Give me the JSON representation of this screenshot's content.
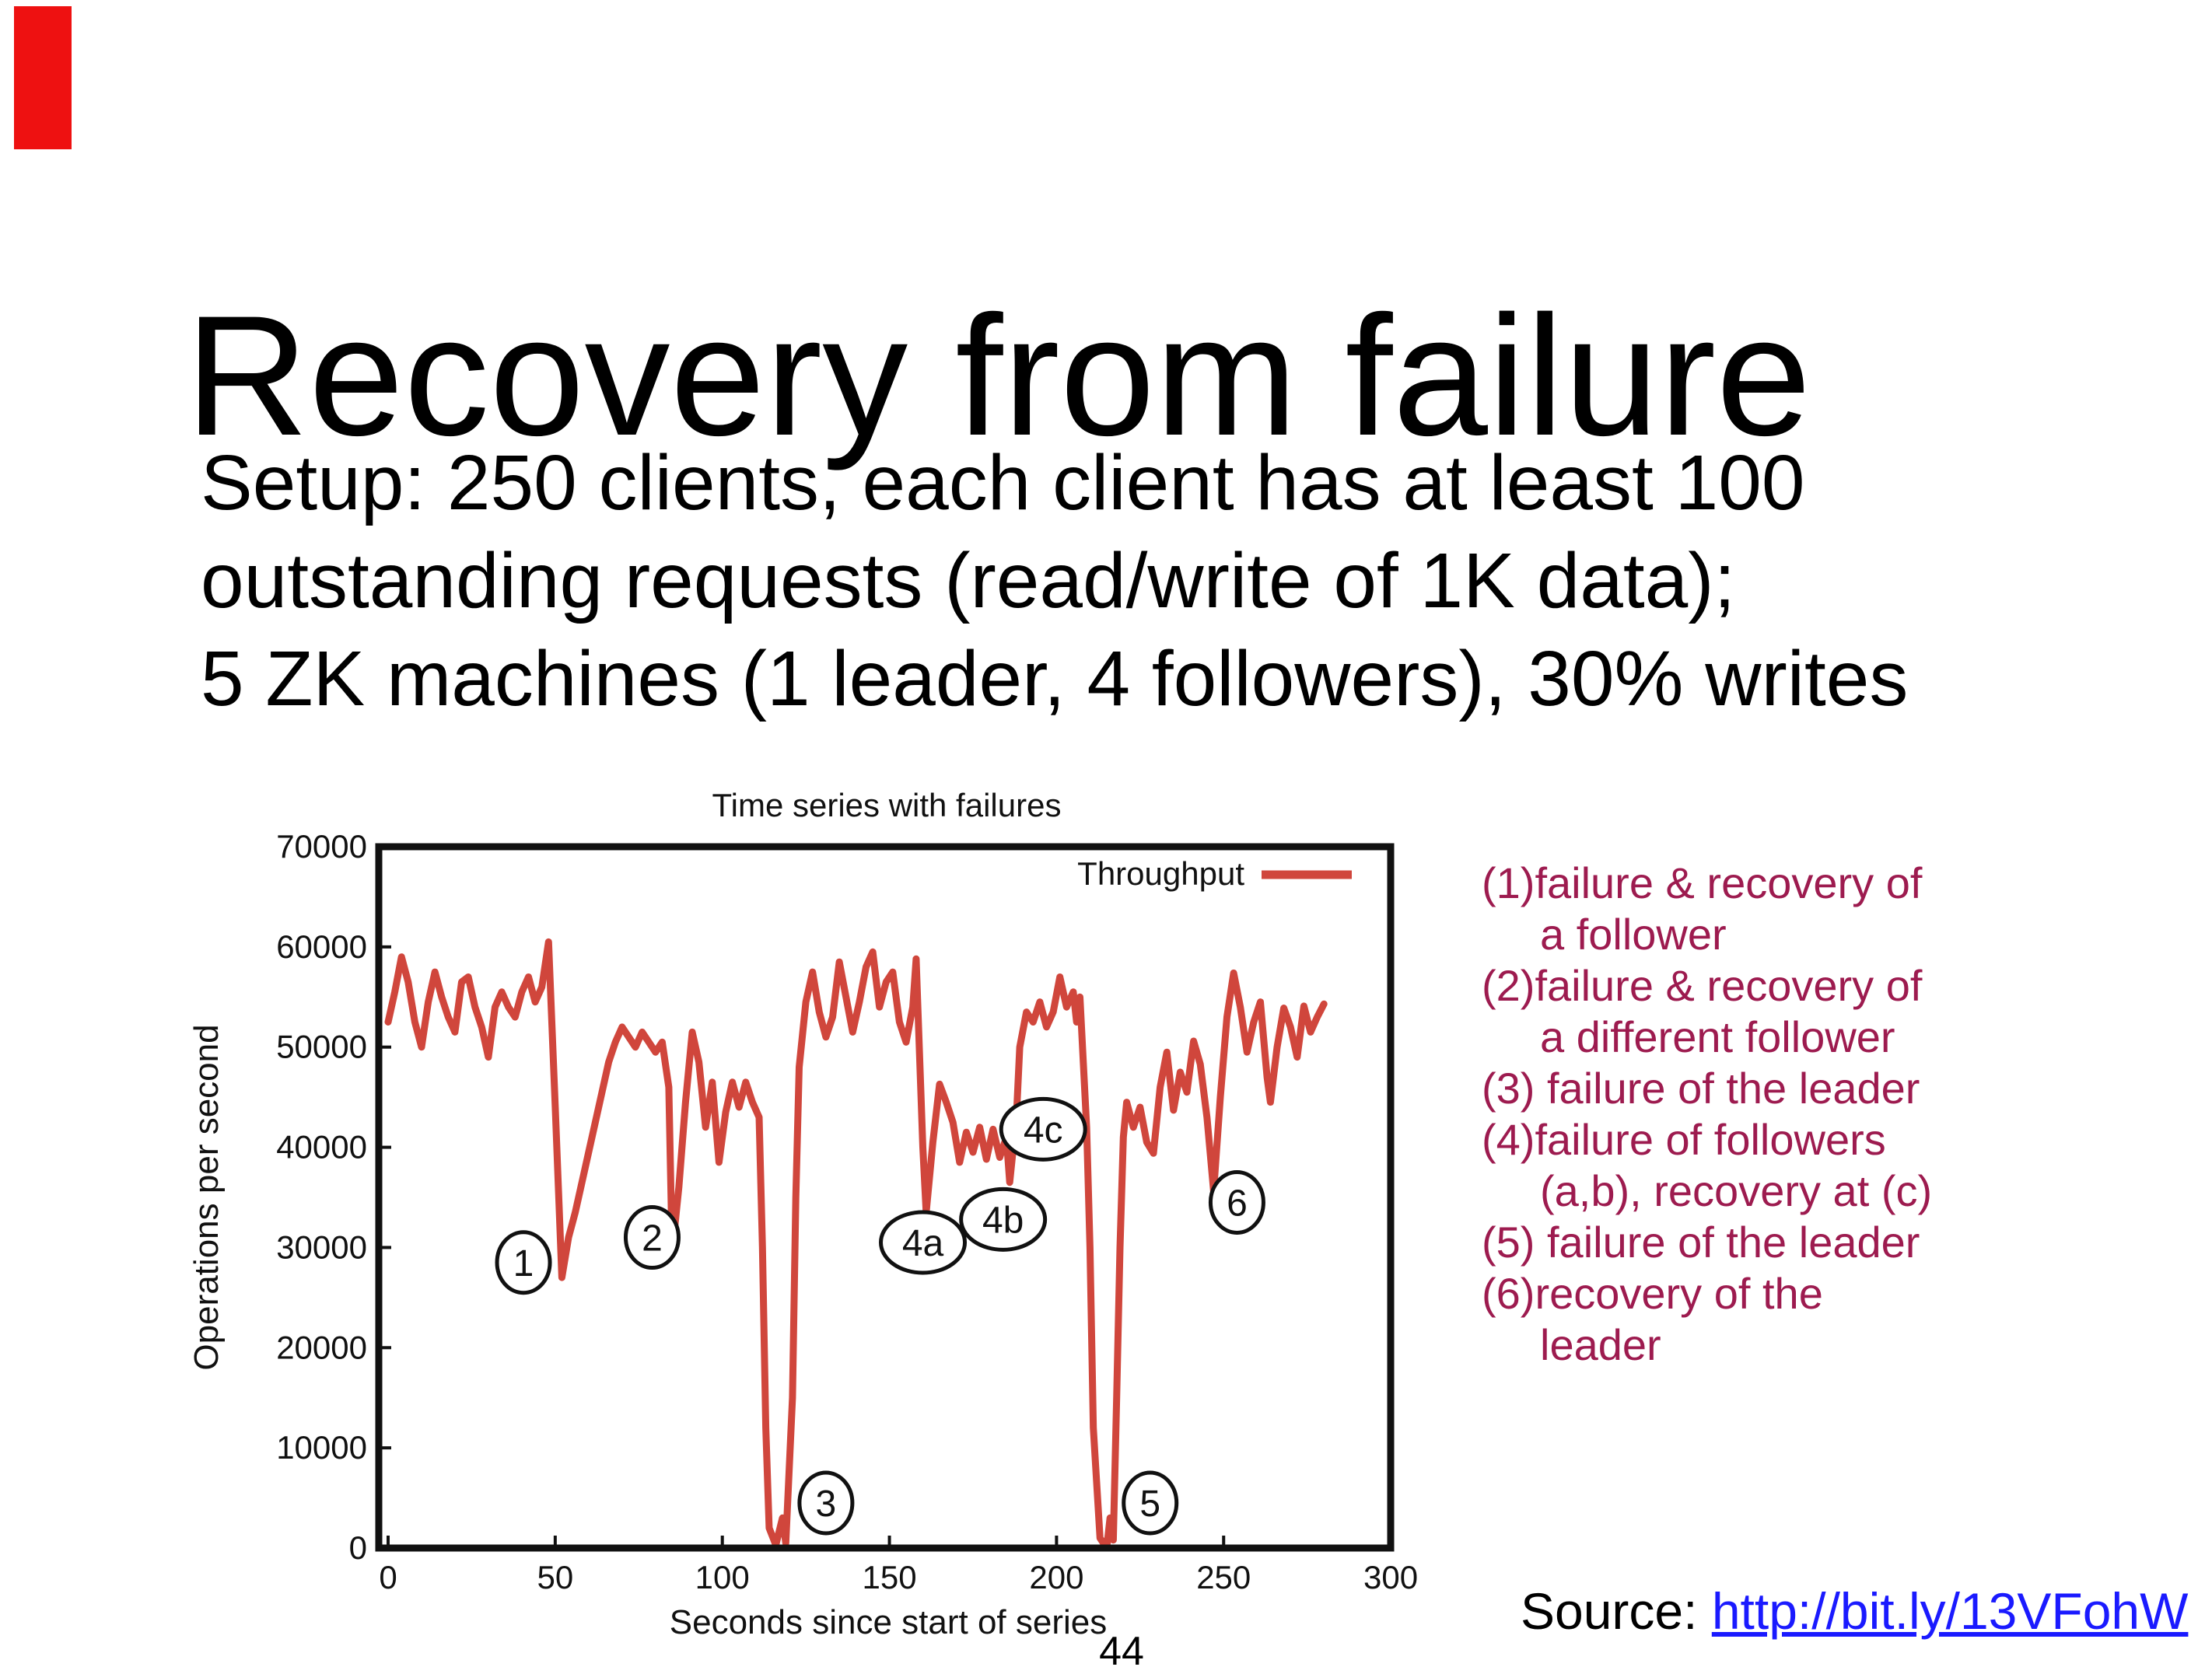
{
  "title": "Recovery from failure",
  "setup": {
    "text": "Setup: 250 clients, each client has at least 100\noutstanding requests (read/write of 1K data);\n5 ZK machines (1 leader, 4 followers), 30% writes"
  },
  "page_number": "44",
  "source": {
    "label": "Source:",
    "url": "http://bit.ly/13VFohW",
    "link_color": "#1a1aff"
  },
  "colors": {
    "accent_red_bar": "#ee1111",
    "line_red": "#d0463c",
    "event_text_maroon": "#9d1b4f",
    "chart_border": "#111111"
  },
  "events": {
    "lines": [
      {
        "text": "(1)failure & recovery of",
        "indent": false
      },
      {
        "text": "a follower",
        "indent": true
      },
      {
        "text": "(2)failure & recovery of",
        "indent": false
      },
      {
        "text": "a different follower",
        "indent": true
      },
      {
        "text": "(3) failure of the leader",
        "indent": false
      },
      {
        "text": "(4)failure of followers",
        "indent": false
      },
      {
        "text": "(a,b), recovery at (c)",
        "indent": true
      },
      {
        "text": "(5) failure of the leader",
        "indent": false
      },
      {
        "text": "(6)recovery of the",
        "indent": false
      },
      {
        "text": "leader",
        "indent": true
      }
    ]
  },
  "chart_data": {
    "type": "line",
    "title": "Time series with failures",
    "xlabel": "Seconds since start of series",
    "ylabel": "Operations per second",
    "xlim": [
      0,
      300
    ],
    "ylim": [
      0,
      70000
    ],
    "xticks": [
      0,
      50,
      100,
      150,
      200,
      250,
      300
    ],
    "yticks": [
      0,
      10000,
      20000,
      30000,
      40000,
      50000,
      60000,
      70000
    ],
    "grid": false,
    "legend": {
      "label": "Throughput",
      "position": "top-right"
    },
    "series": [
      {
        "name": "Throughput",
        "color": "#d0463c",
        "points": [
          [
            0,
            52500
          ],
          [
            2,
            55500
          ],
          [
            4,
            59000
          ],
          [
            6,
            56500
          ],
          [
            8,
            52500
          ],
          [
            10,
            50000
          ],
          [
            12,
            54500
          ],
          [
            14,
            57500
          ],
          [
            16,
            55000
          ],
          [
            18,
            53000
          ],
          [
            20,
            51500
          ],
          [
            22,
            56500
          ],
          [
            24,
            57000
          ],
          [
            26,
            54000
          ],
          [
            28,
            52000
          ],
          [
            30,
            49000
          ],
          [
            32,
            54000
          ],
          [
            34,
            55500
          ],
          [
            36,
            54000
          ],
          [
            38,
            53000
          ],
          [
            40,
            55500
          ],
          [
            42,
            57000
          ],
          [
            44,
            54500
          ],
          [
            46,
            56000
          ],
          [
            48,
            60500
          ],
          [
            50,
            44000
          ],
          [
            52,
            27000
          ],
          [
            54,
            31000
          ],
          [
            56,
            33500
          ],
          [
            58,
            36500
          ],
          [
            60,
            39500
          ],
          [
            62,
            42500
          ],
          [
            64,
            45500
          ],
          [
            66,
            48500
          ],
          [
            68,
            50500
          ],
          [
            70,
            52000
          ],
          [
            72,
            51000
          ],
          [
            74,
            50000
          ],
          [
            76,
            51500
          ],
          [
            78,
            50500
          ],
          [
            80,
            49500
          ],
          [
            82,
            50500
          ],
          [
            84,
            46000
          ],
          [
            85,
            29500
          ],
          [
            87,
            36000
          ],
          [
            89,
            44500
          ],
          [
            91,
            51500
          ],
          [
            93,
            48500
          ],
          [
            95,
            42000
          ],
          [
            97,
            46500
          ],
          [
            99,
            38500
          ],
          [
            101,
            43500
          ],
          [
            103,
            46500
          ],
          [
            105,
            44000
          ],
          [
            107,
            46500
          ],
          [
            109,
            44500
          ],
          [
            111,
            43000
          ],
          [
            112,
            30000
          ],
          [
            113,
            12000
          ],
          [
            114,
            2000
          ],
          [
            116,
            300
          ],
          [
            118,
            3000
          ],
          [
            119,
            500
          ],
          [
            121,
            15000
          ],
          [
            122,
            35000
          ],
          [
            123,
            48000
          ],
          [
            125,
            54500
          ],
          [
            127,
            57500
          ],
          [
            129,
            53500
          ],
          [
            131,
            51000
          ],
          [
            133,
            53000
          ],
          [
            135,
            58500
          ],
          [
            137,
            55000
          ],
          [
            139,
            51500
          ],
          [
            141,
            54500
          ],
          [
            143,
            58000
          ],
          [
            145,
            59500
          ],
          [
            147,
            54000
          ],
          [
            149,
            56500
          ],
          [
            151,
            57500
          ],
          [
            153,
            52500
          ],
          [
            155,
            50500
          ],
          [
            157,
            54000
          ],
          [
            158,
            58800
          ],
          [
            160,
            40000
          ],
          [
            161,
            33500
          ],
          [
            163,
            40500
          ],
          [
            165,
            46300
          ],
          [
            167,
            44500
          ],
          [
            169,
            42500
          ],
          [
            171,
            38500
          ],
          [
            173,
            41500
          ],
          [
            175,
            39500
          ],
          [
            177,
            42000
          ],
          [
            179,
            38800
          ],
          [
            181,
            41800
          ],
          [
            183,
            39000
          ],
          [
            185,
            41000
          ],
          [
            186,
            36500
          ],
          [
            188,
            43000
          ],
          [
            189,
            50000
          ],
          [
            191,
            53500
          ],
          [
            193,
            52500
          ],
          [
            195,
            54500
          ],
          [
            197,
            52000
          ],
          [
            199,
            53500
          ],
          [
            201,
            57000
          ],
          [
            203,
            54000
          ],
          [
            205,
            55500
          ],
          [
            206,
            52500
          ],
          [
            207,
            55000
          ],
          [
            209,
            42000
          ],
          [
            210,
            30000
          ],
          [
            211,
            12000
          ],
          [
            213,
            1000
          ],
          [
            215,
            0
          ],
          [
            216,
            3000
          ],
          [
            217,
            800
          ],
          [
            218,
            15000
          ],
          [
            219,
            30000
          ],
          [
            220,
            41000
          ],
          [
            221,
            44500
          ],
          [
            223,
            42000
          ],
          [
            225,
            44000
          ],
          [
            227,
            40500
          ],
          [
            229,
            39400
          ],
          [
            231,
            46000
          ],
          [
            233,
            49500
          ],
          [
            235,
            43700
          ],
          [
            237,
            47500
          ],
          [
            239,
            45500
          ],
          [
            241,
            50600
          ],
          [
            243,
            48300
          ],
          [
            245,
            43000
          ],
          [
            247,
            35600
          ],
          [
            249,
            45000
          ],
          [
            251,
            53000
          ],
          [
            253,
            57400
          ],
          [
            255,
            54000
          ],
          [
            257,
            49500
          ],
          [
            259,
            52500
          ],
          [
            261,
            54500
          ],
          [
            263,
            47000
          ],
          [
            264,
            44500
          ],
          [
            266,
            50000
          ],
          [
            268,
            53900
          ],
          [
            270,
            52000
          ],
          [
            272,
            49000
          ],
          [
            274,
            54100
          ],
          [
            276,
            51500
          ],
          [
            278,
            53000
          ],
          [
            280,
            54300
          ]
        ]
      }
    ],
    "annotations": [
      {
        "label": "1",
        "x": 40.5,
        "y": 28500
      },
      {
        "label": "2",
        "x": 79,
        "y": 31000
      },
      {
        "label": "3",
        "x": 131,
        "y": 4500
      },
      {
        "label": "4a",
        "x": 160,
        "y": 30500
      },
      {
        "label": "4b",
        "x": 184,
        "y": 32800
      },
      {
        "label": "4c",
        "x": 196,
        "y": 41800
      },
      {
        "label": "5",
        "x": 228,
        "y": 4500
      },
      {
        "label": "6",
        "x": 254,
        "y": 34500
      }
    ]
  }
}
